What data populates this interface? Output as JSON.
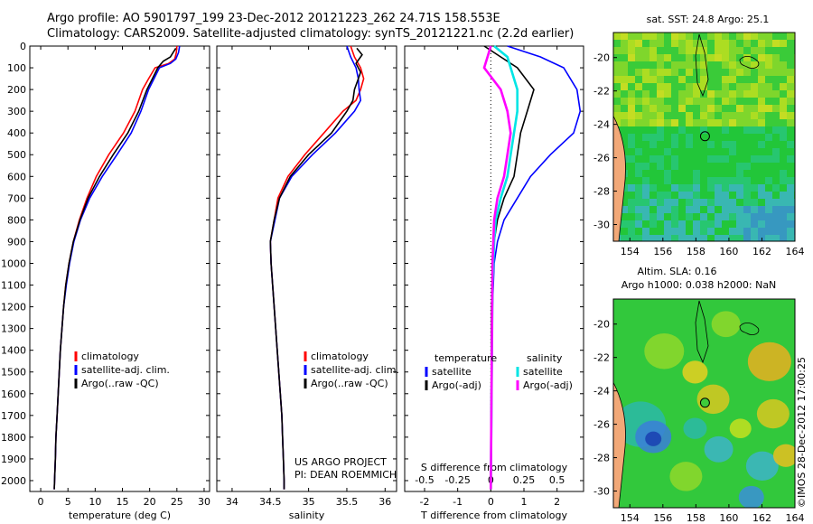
{
  "header": {
    "line1": "Argo profile: AO 5901797_199 23-Dec-2012 20121223_262 24.71S 158.553E",
    "line2": "Climatology: CARS2009. Satellite-adjusted climatology: synTS_20121221.nc (2.2d earlier)"
  },
  "side_label": "©IMOS 28-Dec-2012 17:00:25",
  "colors": {
    "climatology": "#ff0000",
    "satellite": "#0000ff",
    "argo": "#000000",
    "sal_satellite": "#00e5e5",
    "sal_argo": "#ff00ff"
  },
  "chart_data": [
    {
      "type": "line",
      "xlabel": "temperature (deg C)",
      "xlim": [
        -2,
        31
      ],
      "xticks": [
        0,
        5,
        10,
        15,
        20,
        25,
        30
      ],
      "ylim": [
        0,
        2050
      ],
      "yticks": [
        0,
        100,
        200,
        300,
        400,
        500,
        600,
        700,
        800,
        900,
        1000,
        1100,
        1200,
        1300,
        1400,
        1500,
        1600,
        1700,
        1800,
        1900,
        2000
      ],
      "legend": [
        "climatology",
        "satellite-adj. clim.",
        "Argo(..raw -QC)"
      ],
      "series": [
        {
          "name": "climatology",
          "color": "#ff0000",
          "points": [
            [
              25.0,
              0
            ],
            [
              24.9,
              30
            ],
            [
              24.6,
              60
            ],
            [
              23.5,
              80
            ],
            [
              21.0,
              100
            ],
            [
              19.8,
              150
            ],
            [
              18.7,
              200
            ],
            [
              17.3,
              300
            ],
            [
              15.2,
              400
            ],
            [
              12.5,
              500
            ],
            [
              10.2,
              600
            ],
            [
              8.5,
              700
            ],
            [
              7.1,
              800
            ],
            [
              6.0,
              900
            ],
            [
              5.2,
              1000
            ],
            [
              4.6,
              1100
            ],
            [
              4.2,
              1200
            ],
            [
              3.9,
              1300
            ],
            [
              3.6,
              1400
            ],
            [
              3.4,
              1500
            ],
            [
              3.2,
              1600
            ],
            [
              3.0,
              1700
            ],
            [
              2.8,
              1800
            ],
            [
              2.7,
              1900
            ],
            [
              2.55,
              2000
            ],
            [
              2.5,
              2040
            ]
          ]
        },
        {
          "name": "satellite-adj. clim.",
          "color": "#0000ff",
          "points": [
            [
              25.5,
              0
            ],
            [
              25.3,
              30
            ],
            [
              24.8,
              60
            ],
            [
              23.8,
              80
            ],
            [
              21.8,
              100
            ],
            [
              20.8,
              150
            ],
            [
              19.8,
              200
            ],
            [
              18.4,
              300
            ],
            [
              16.6,
              400
            ],
            [
              14.0,
              500
            ],
            [
              11.3,
              600
            ],
            [
              9.0,
              700
            ],
            [
              7.3,
              800
            ],
            [
              6.1,
              900
            ],
            [
              5.3,
              1000
            ],
            [
              4.7,
              1100
            ],
            [
              4.2,
              1200
            ],
            [
              3.9,
              1300
            ],
            [
              3.6,
              1400
            ],
            [
              3.4,
              1500
            ],
            [
              3.2,
              1600
            ],
            [
              3.0,
              1700
            ],
            [
              2.8,
              1800
            ],
            [
              2.7,
              1900
            ],
            [
              2.55,
              2000
            ],
            [
              2.5,
              2040
            ]
          ]
        },
        {
          "name": "Argo(..raw -QC)",
          "color": "#000000",
          "points": [
            [
              24.8,
              10
            ],
            [
              24.3,
              30
            ],
            [
              23.8,
              50
            ],
            [
              22.5,
              70
            ],
            [
              21.5,
              100
            ],
            [
              20.5,
              150
            ],
            [
              19.5,
              200
            ],
            [
              18.0,
              300
            ],
            [
              16.0,
              400
            ],
            [
              13.3,
              500
            ],
            [
              10.8,
              600
            ],
            [
              8.7,
              700
            ],
            [
              7.2,
              800
            ],
            [
              6.0,
              900
            ],
            [
              5.2,
              1000
            ],
            [
              4.6,
              1100
            ],
            [
              4.2,
              1200
            ],
            [
              3.9,
              1300
            ],
            [
              3.6,
              1400
            ],
            [
              3.4,
              1500
            ],
            [
              3.2,
              1600
            ],
            [
              3.0,
              1700
            ],
            [
              2.8,
              1800
            ],
            [
              2.7,
              1900
            ],
            [
              2.55,
              2000
            ],
            [
              2.5,
              2040
            ]
          ]
        }
      ]
    },
    {
      "type": "line",
      "xlabel": "salinity",
      "xlim": [
        33.8,
        36.15
      ],
      "xticks": [
        34,
        34.5,
        35,
        35.5,
        36
      ],
      "ylim": [
        0,
        2050
      ],
      "legend": [
        "climatology",
        "satellite-adj. clim.",
        "Argo(..raw -QC)"
      ],
      "annotation": [
        "US ARGO PROJECT",
        "PI: DEAN ROEMMICH"
      ],
      "series": [
        {
          "name": "climatology",
          "color": "#ff0000",
          "points": [
            [
              35.55,
              0
            ],
            [
              35.6,
              50
            ],
            [
              35.68,
              100
            ],
            [
              35.72,
              150
            ],
            [
              35.68,
              200
            ],
            [
              35.62,
              250
            ],
            [
              35.45,
              300
            ],
            [
              35.2,
              400
            ],
            [
              34.95,
              500
            ],
            [
              34.73,
              600
            ],
            [
              34.6,
              700
            ],
            [
              34.55,
              800
            ],
            [
              34.5,
              900
            ],
            [
              34.51,
              1000
            ],
            [
              34.53,
              1100
            ],
            [
              34.55,
              1200
            ],
            [
              34.57,
              1300
            ],
            [
              34.59,
              1400
            ],
            [
              34.61,
              1500
            ],
            [
              34.63,
              1600
            ],
            [
              34.65,
              1700
            ],
            [
              34.66,
              1800
            ],
            [
              34.67,
              1900
            ],
            [
              34.68,
              2000
            ],
            [
              34.68,
              2040
            ]
          ]
        },
        {
          "name": "satellite-adj. clim.",
          "color": "#0000ff",
          "points": [
            [
              35.5,
              0
            ],
            [
              35.55,
              50
            ],
            [
              35.62,
              100
            ],
            [
              35.65,
              150
            ],
            [
              35.66,
              200
            ],
            [
              35.68,
              250
            ],
            [
              35.6,
              300
            ],
            [
              35.35,
              400
            ],
            [
              35.05,
              500
            ],
            [
              34.78,
              600
            ],
            [
              34.62,
              700
            ],
            [
              34.56,
              800
            ],
            [
              34.5,
              900
            ],
            [
              34.51,
              1000
            ],
            [
              34.53,
              1100
            ],
            [
              34.55,
              1200
            ],
            [
              34.57,
              1300
            ],
            [
              34.59,
              1400
            ],
            [
              34.61,
              1500
            ],
            [
              34.63,
              1600
            ],
            [
              34.65,
              1700
            ],
            [
              34.66,
              1800
            ],
            [
              34.67,
              1900
            ],
            [
              34.68,
              2000
            ],
            [
              34.68,
              2040
            ]
          ]
        },
        {
          "name": "Argo(..raw -QC)",
          "color": "#000000",
          "points": [
            [
              35.63,
              10
            ],
            [
              35.7,
              40
            ],
            [
              35.62,
              80
            ],
            [
              35.68,
              120
            ],
            [
              35.65,
              150
            ],
            [
              35.6,
              200
            ],
            [
              35.58,
              250
            ],
            [
              35.5,
              300
            ],
            [
              35.3,
              400
            ],
            [
              35.0,
              500
            ],
            [
              34.76,
              600
            ],
            [
              34.62,
              700
            ],
            [
              34.55,
              800
            ],
            [
              34.5,
              900
            ],
            [
              34.51,
              1000
            ],
            [
              34.53,
              1100
            ],
            [
              34.55,
              1200
            ],
            [
              34.57,
              1300
            ],
            [
              34.59,
              1400
            ],
            [
              34.61,
              1500
            ],
            [
              34.63,
              1600
            ],
            [
              34.65,
              1700
            ],
            [
              34.66,
              1800
            ],
            [
              34.67,
              1900
            ],
            [
              34.68,
              2000
            ],
            [
              34.68,
              2040
            ]
          ]
        }
      ]
    },
    {
      "type": "line",
      "xlabel": "T difference from climatology",
      "xlabel_top": "S difference from climatology",
      "xlim": [
        -2.6,
        2.8
      ],
      "xticks": [
        -2,
        -1,
        0,
        1,
        2
      ],
      "xticks_top": [
        "-0.5",
        "-0.25",
        "0",
        "0.25",
        "0.5"
      ],
      "ylim": [
        0,
        2050
      ],
      "legend_headers": [
        "temperature",
        "salinity"
      ],
      "legend": [
        "satellite",
        "Argo(-adj)",
        "satellite",
        "Argo(-adj)"
      ],
      "series": [
        {
          "name": "satellite",
          "color": "#0000ff",
          "points": [
            [
              0.5,
              0
            ],
            [
              1.5,
              50
            ],
            [
              2.2,
              100
            ],
            [
              2.6,
              200
            ],
            [
              2.7,
              300
            ],
            [
              2.5,
              400
            ],
            [
              1.8,
              500
            ],
            [
              1.2,
              600
            ],
            [
              0.8,
              700
            ],
            [
              0.4,
              800
            ],
            [
              0.2,
              900
            ],
            [
              0.1,
              1000
            ],
            [
              0.05,
              1200
            ],
            [
              0.02,
              1500
            ],
            [
              0.0,
              2040
            ]
          ]
        },
        {
          "name": "Argo(-adj)",
          "color": "#000000",
          "points": [
            [
              -0.2,
              0
            ],
            [
              0.3,
              50
            ],
            [
              0.8,
              100
            ],
            [
              1.3,
              200
            ],
            [
              1.1,
              300
            ],
            [
              0.9,
              400
            ],
            [
              0.8,
              500
            ],
            [
              0.7,
              600
            ],
            [
              0.4,
              700
            ],
            [
              0.2,
              800
            ],
            [
              0.1,
              900
            ],
            [
              0.05,
              1000
            ],
            [
              0.02,
              1200
            ],
            [
              0.0,
              2040
            ]
          ]
        },
        {
          "name": "satellite",
          "color": "#00e5e5",
          "points": [
            [
              0.1,
              0
            ],
            [
              0.5,
              50
            ],
            [
              0.6,
              100
            ],
            [
              0.8,
              200
            ],
            [
              0.8,
              300
            ],
            [
              0.7,
              400
            ],
            [
              0.6,
              500
            ],
            [
              0.5,
              600
            ],
            [
              0.3,
              700
            ],
            [
              0.15,
              800
            ],
            [
              0.1,
              900
            ],
            [
              0.05,
              1100
            ],
            [
              0.0,
              2040
            ]
          ]
        },
        {
          "name": "Argo(-adj)",
          "color": "#ff00ff",
          "points": [
            [
              0.0,
              0
            ],
            [
              -0.1,
              50
            ],
            [
              -0.2,
              100
            ],
            [
              0.3,
              200
            ],
            [
              0.5,
              300
            ],
            [
              0.6,
              400
            ],
            [
              0.5,
              500
            ],
            [
              0.4,
              600
            ],
            [
              0.2,
              700
            ],
            [
              0.1,
              800
            ],
            [
              0.05,
              1000
            ],
            [
              0.0,
              2040
            ]
          ]
        }
      ]
    },
    {
      "type": "heatmap",
      "title": "sat. SST: 24.8  Argo: 25.1",
      "xticks": [
        154,
        156,
        158,
        160,
        162,
        164
      ],
      "yticks": [
        -20,
        -22,
        -24,
        -26,
        -28,
        -30
      ],
      "xlim": [
        153,
        164
      ],
      "ylim": [
        -31,
        -18.5
      ],
      "marker": [
        158.55,
        -24.71
      ]
    },
    {
      "type": "heatmap",
      "title": "Altim. SLA: 0.16",
      "subtitle": "Argo h1000: 0.038 h2000: NaN",
      "xticks": [
        154,
        156,
        158,
        160,
        162,
        164
      ],
      "yticks": [
        -20,
        -22,
        -24,
        -26,
        -28,
        -30
      ],
      "xlim": [
        153,
        164
      ],
      "ylim": [
        -31,
        -18.5
      ],
      "marker": [
        158.55,
        -24.71
      ]
    }
  ]
}
